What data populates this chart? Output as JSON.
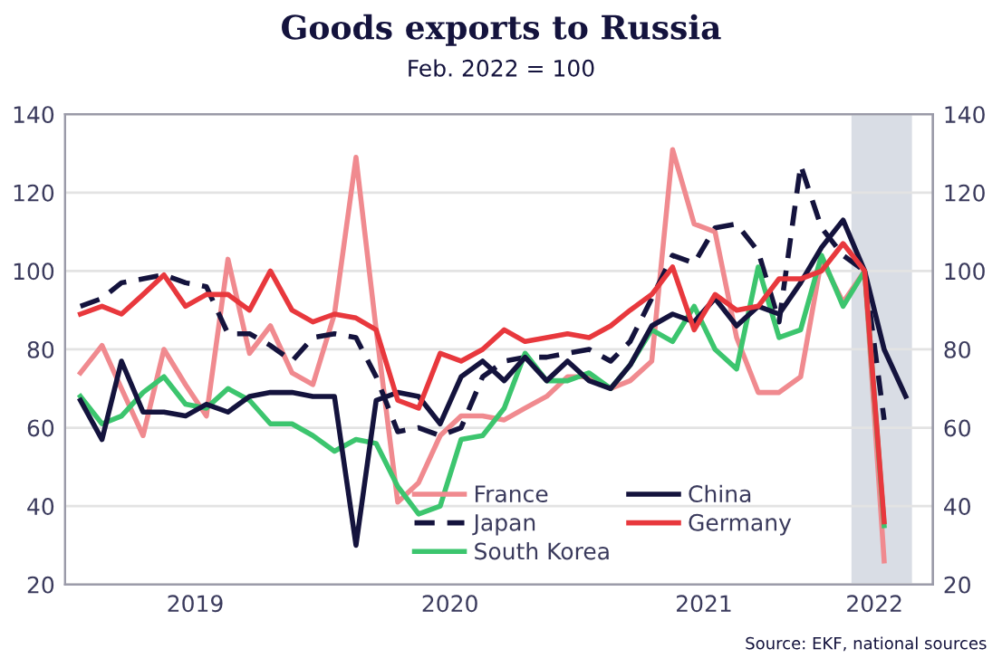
{
  "chart_data": {
    "type": "line",
    "title": "Goods exports to Russia",
    "subtitle": "Feb. 2022 = 100",
    "annotations": [
      "Source: EKF, national sources"
    ],
    "x": [
      "2019-01",
      "2019-02",
      "2019-03",
      "2019-04",
      "2019-05",
      "2019-06",
      "2019-07",
      "2019-08",
      "2019-09",
      "2019-10",
      "2019-11",
      "2019-12",
      "2020-01",
      "2020-02",
      "2020-03",
      "2020-04",
      "2020-05",
      "2020-06",
      "2020-07",
      "2020-08",
      "2020-09",
      "2020-10",
      "2020-11",
      "2020-12",
      "2021-01",
      "2021-02",
      "2021-03",
      "2021-04",
      "2021-05",
      "2021-06",
      "2021-07",
      "2021-08",
      "2021-09",
      "2021-10",
      "2021-11",
      "2021-12",
      "2022-01",
      "2022-02",
      "2022-03",
      "2022-04"
    ],
    "series": [
      {
        "name": "France",
        "color": "#f08a8f",
        "line_style": "solid",
        "values": [
          74,
          81,
          70,
          58,
          80,
          71,
          63,
          103,
          79,
          86,
          74,
          71,
          89,
          129,
          85,
          41,
          46,
          58,
          63,
          63,
          62,
          65,
          68,
          73,
          73,
          70,
          72,
          77,
          131,
          112,
          110,
          83,
          69,
          69,
          73,
          103,
          92,
          100,
          26,
          null
        ]
      },
      {
        "name": "Japan",
        "color": "#14133d",
        "line_style": "dashed",
        "values": [
          91,
          93,
          97,
          98,
          99,
          97,
          96,
          84,
          84,
          81,
          77,
          83,
          84,
          83,
          73,
          59,
          60,
          58,
          60,
          73,
          77,
          78,
          78,
          79,
          80,
          77,
          82,
          93,
          104,
          102,
          111,
          112,
          105,
          87,
          127,
          111,
          104,
          100,
          62,
          null
        ]
      },
      {
        "name": "South Korea",
        "color": "#3cc56e",
        "line_style": "solid",
        "values": [
          68,
          61,
          63,
          69,
          73,
          66,
          65,
          70,
          67,
          61,
          61,
          58,
          54,
          57,
          56,
          45,
          38,
          40,
          57,
          58,
          65,
          79,
          72,
          72,
          74,
          70,
          76,
          85,
          82,
          91,
          80,
          75,
          101,
          83,
          85,
          104,
          91,
          100,
          35,
          null
        ]
      },
      {
        "name": "China",
        "color": "#14133d",
        "line_style": "solid",
        "values": [
          67,
          57,
          77,
          64,
          64,
          63,
          66,
          64,
          68,
          69,
          69,
          68,
          68,
          30,
          67,
          69,
          68,
          61,
          73,
          77,
          72,
          78,
          72,
          77,
          72,
          70,
          76,
          86,
          89,
          87,
          93,
          86,
          91,
          89,
          97,
          106,
          113,
          100,
          80,
          68
        ]
      },
      {
        "name": "Germany",
        "color": "#e8383d",
        "line_style": "solid",
        "values": [
          89,
          91,
          89,
          94,
          99,
          91,
          94,
          94,
          90,
          100,
          90,
          87,
          89,
          88,
          85,
          67,
          65,
          79,
          77,
          80,
          85,
          82,
          83,
          84,
          83,
          86,
          90,
          94,
          101,
          85,
          94,
          90,
          91,
          98,
          98,
          100,
          107,
          100,
          36,
          null
        ]
      }
    ],
    "xlim": [
      "2018-12-10",
      "2022-05-10"
    ],
    "xticks": [
      {
        "value": "2019-06-15",
        "label": "2019"
      },
      {
        "value": "2020-06-15",
        "label": "2020"
      },
      {
        "value": "2021-06-15",
        "label": "2021"
      },
      {
        "value": "2022-02-15",
        "label": "2022"
      }
    ],
    "ylim": [
      20,
      140
    ],
    "yticks": [
      20,
      40,
      60,
      80,
      100,
      120,
      140
    ],
    "y2lim": [
      20,
      140
    ],
    "y2ticks": [
      20,
      40,
      60,
      80,
      100,
      120,
      140
    ],
    "bands": [
      {
        "axis": "x",
        "from": "2022-01-13",
        "to": "2022-04-10",
        "label": null,
        "color": "#d9dde5"
      }
    ],
    "grid": "y",
    "legend": "bottom",
    "marker": "none"
  }
}
